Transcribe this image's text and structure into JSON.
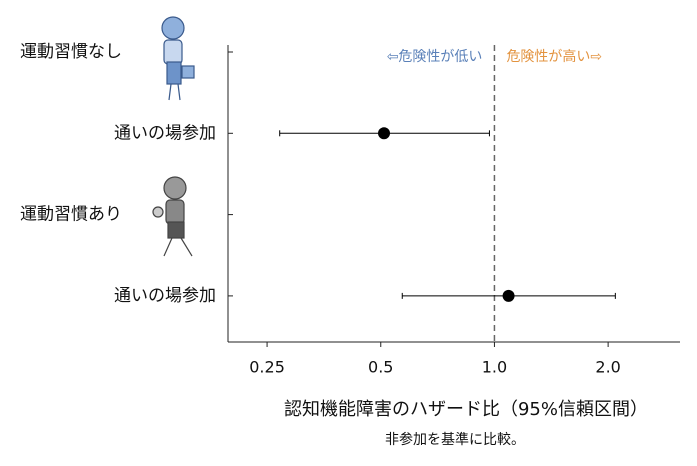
{
  "chart_data": {
    "type": "forest",
    "categories": [
      "運動習慣なし",
      "通いの場参加",
      "運動習慣あり",
      "通いの場参加"
    ],
    "header_rows": [
      0,
      2
    ],
    "series": [
      {
        "name": null,
        "color": "#000000",
        "values": [
          null,
          0.51,
          null,
          1.09
        ],
        "lower": [
          null,
          0.27,
          null,
          0.57
        ],
        "upper": [
          null,
          0.97,
          null,
          2.09
        ]
      }
    ],
    "xlim": [
      0.197,
      3.1
    ],
    "log_x": true,
    "xticks": [
      0.25,
      0.5,
      {
        "value": 1,
        "label": "1.0"
      },
      {
        "value": 2,
        "label": "2.0"
      }
    ],
    "reference_line": 1,
    "xlabel": "認知機能障害のハザード比（95%信頼区間）",
    "note": "非参加を基準に比較。",
    "annotations": [
      {
        "text": "⇦危険性が低い",
        "color": "#5a80b8"
      },
      {
        "text": "危険性が高い⇨",
        "color": "#e3933f"
      }
    ]
  }
}
